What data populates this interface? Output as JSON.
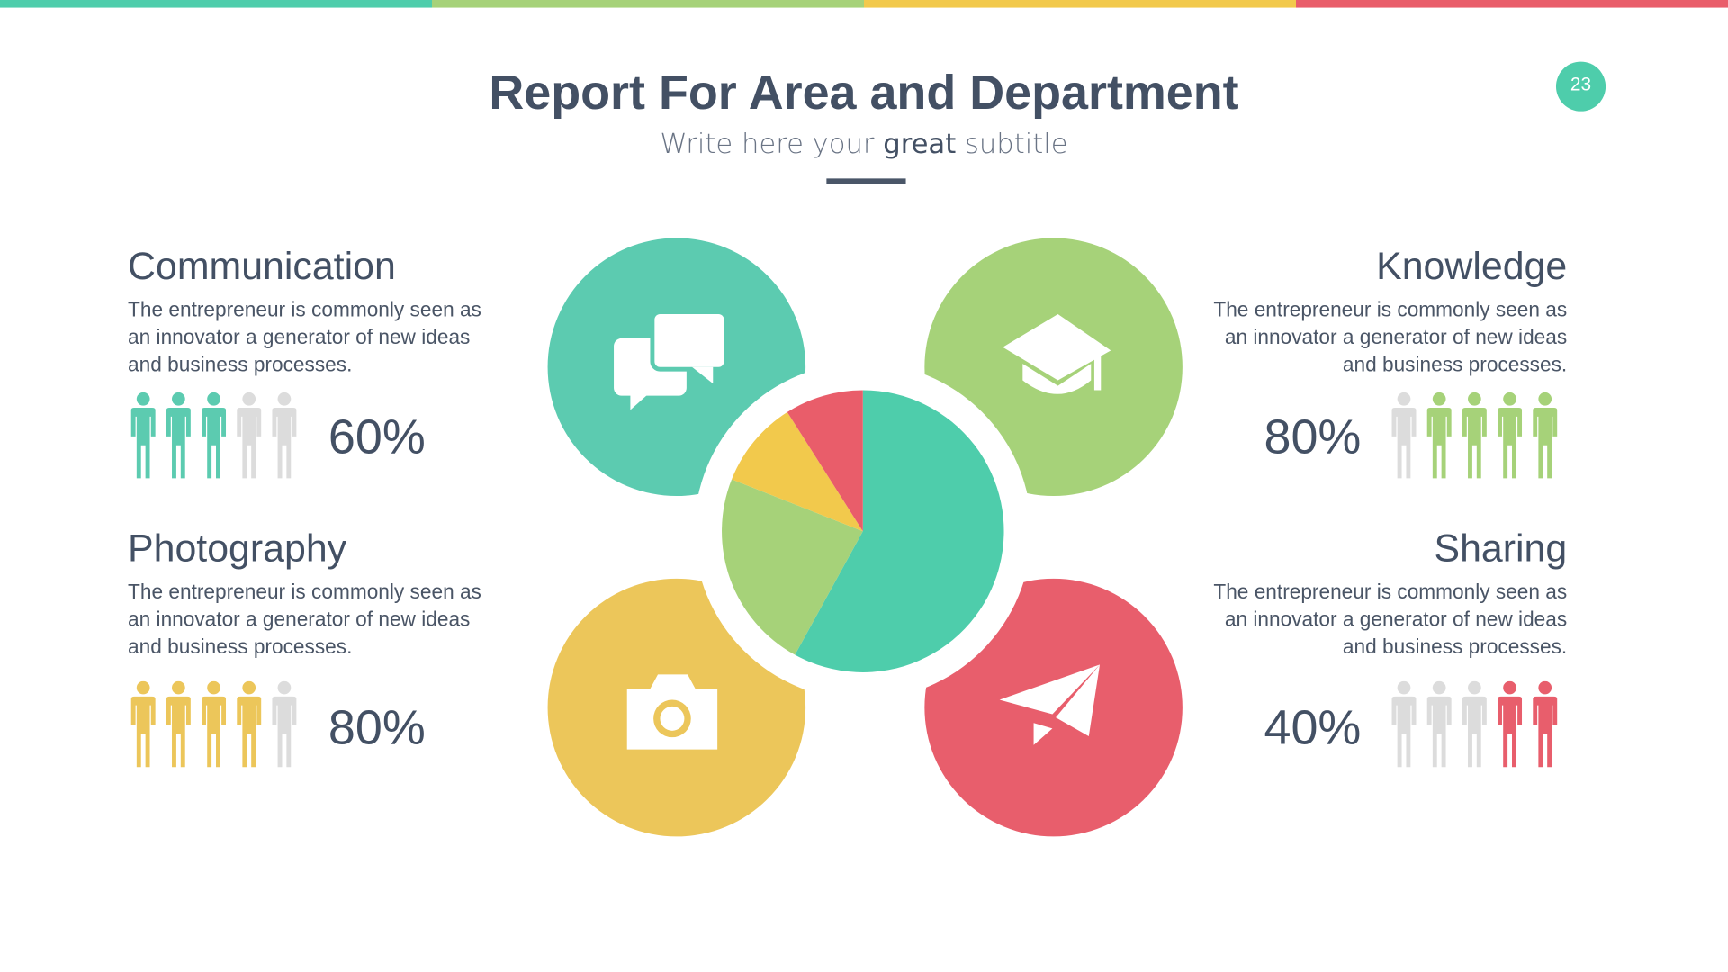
{
  "header": {
    "title": "Report For Area and Department",
    "subtitle_pre": "Write here your ",
    "subtitle_bold": "great",
    "subtitle_post": " subtitle",
    "page_number": "23"
  },
  "colors": {
    "teal": "#5ccbb0",
    "green": "#a6d279",
    "yellow": "#ecc65a",
    "red": "#e85e6c",
    "gray": "#dcdcdc",
    "text": "#435064"
  },
  "top_bar": [
    "#4ecdab",
    "#a6d279",
    "#f2c94c",
    "#e95d6a"
  ],
  "sections": [
    {
      "title": "Communication",
      "text": "The entrepreneur is commonly seen as an innovator a generator of new ideas and business processes.",
      "percent": "60%",
      "filled": 3,
      "color": "#5ccbb0",
      "icon": "chat-bubbles-icon"
    },
    {
      "title": "Knowledge",
      "text": "The entrepreneur is commonly seen as an innovator a generator of new ideas and business processes.",
      "percent": "80%",
      "filled": 4,
      "color": "#a6d279",
      "icon": "graduation-cap-icon"
    },
    {
      "title": "Photography",
      "text": "The entrepreneur is commonly seen as an innovator a generator of new ideas and business processes.",
      "percent": "80%",
      "filled": 4,
      "color": "#ecc65a",
      "icon": "camera-icon"
    },
    {
      "title": "Sharing",
      "text": "The entrepreneur is commonly seen as an innovator a generator of new ideas and business processes.",
      "percent": "40%",
      "filled": 2,
      "color": "#e85e6c",
      "icon": "paper-plane-icon"
    }
  ],
  "chart_data": {
    "type": "pie",
    "values": [
      58,
      23,
      10,
      9
    ],
    "colors": [
      "#4ecdab",
      "#a6d279",
      "#f2c94c",
      "#e95d6a"
    ],
    "start": "top",
    "direction": "clockwise"
  }
}
